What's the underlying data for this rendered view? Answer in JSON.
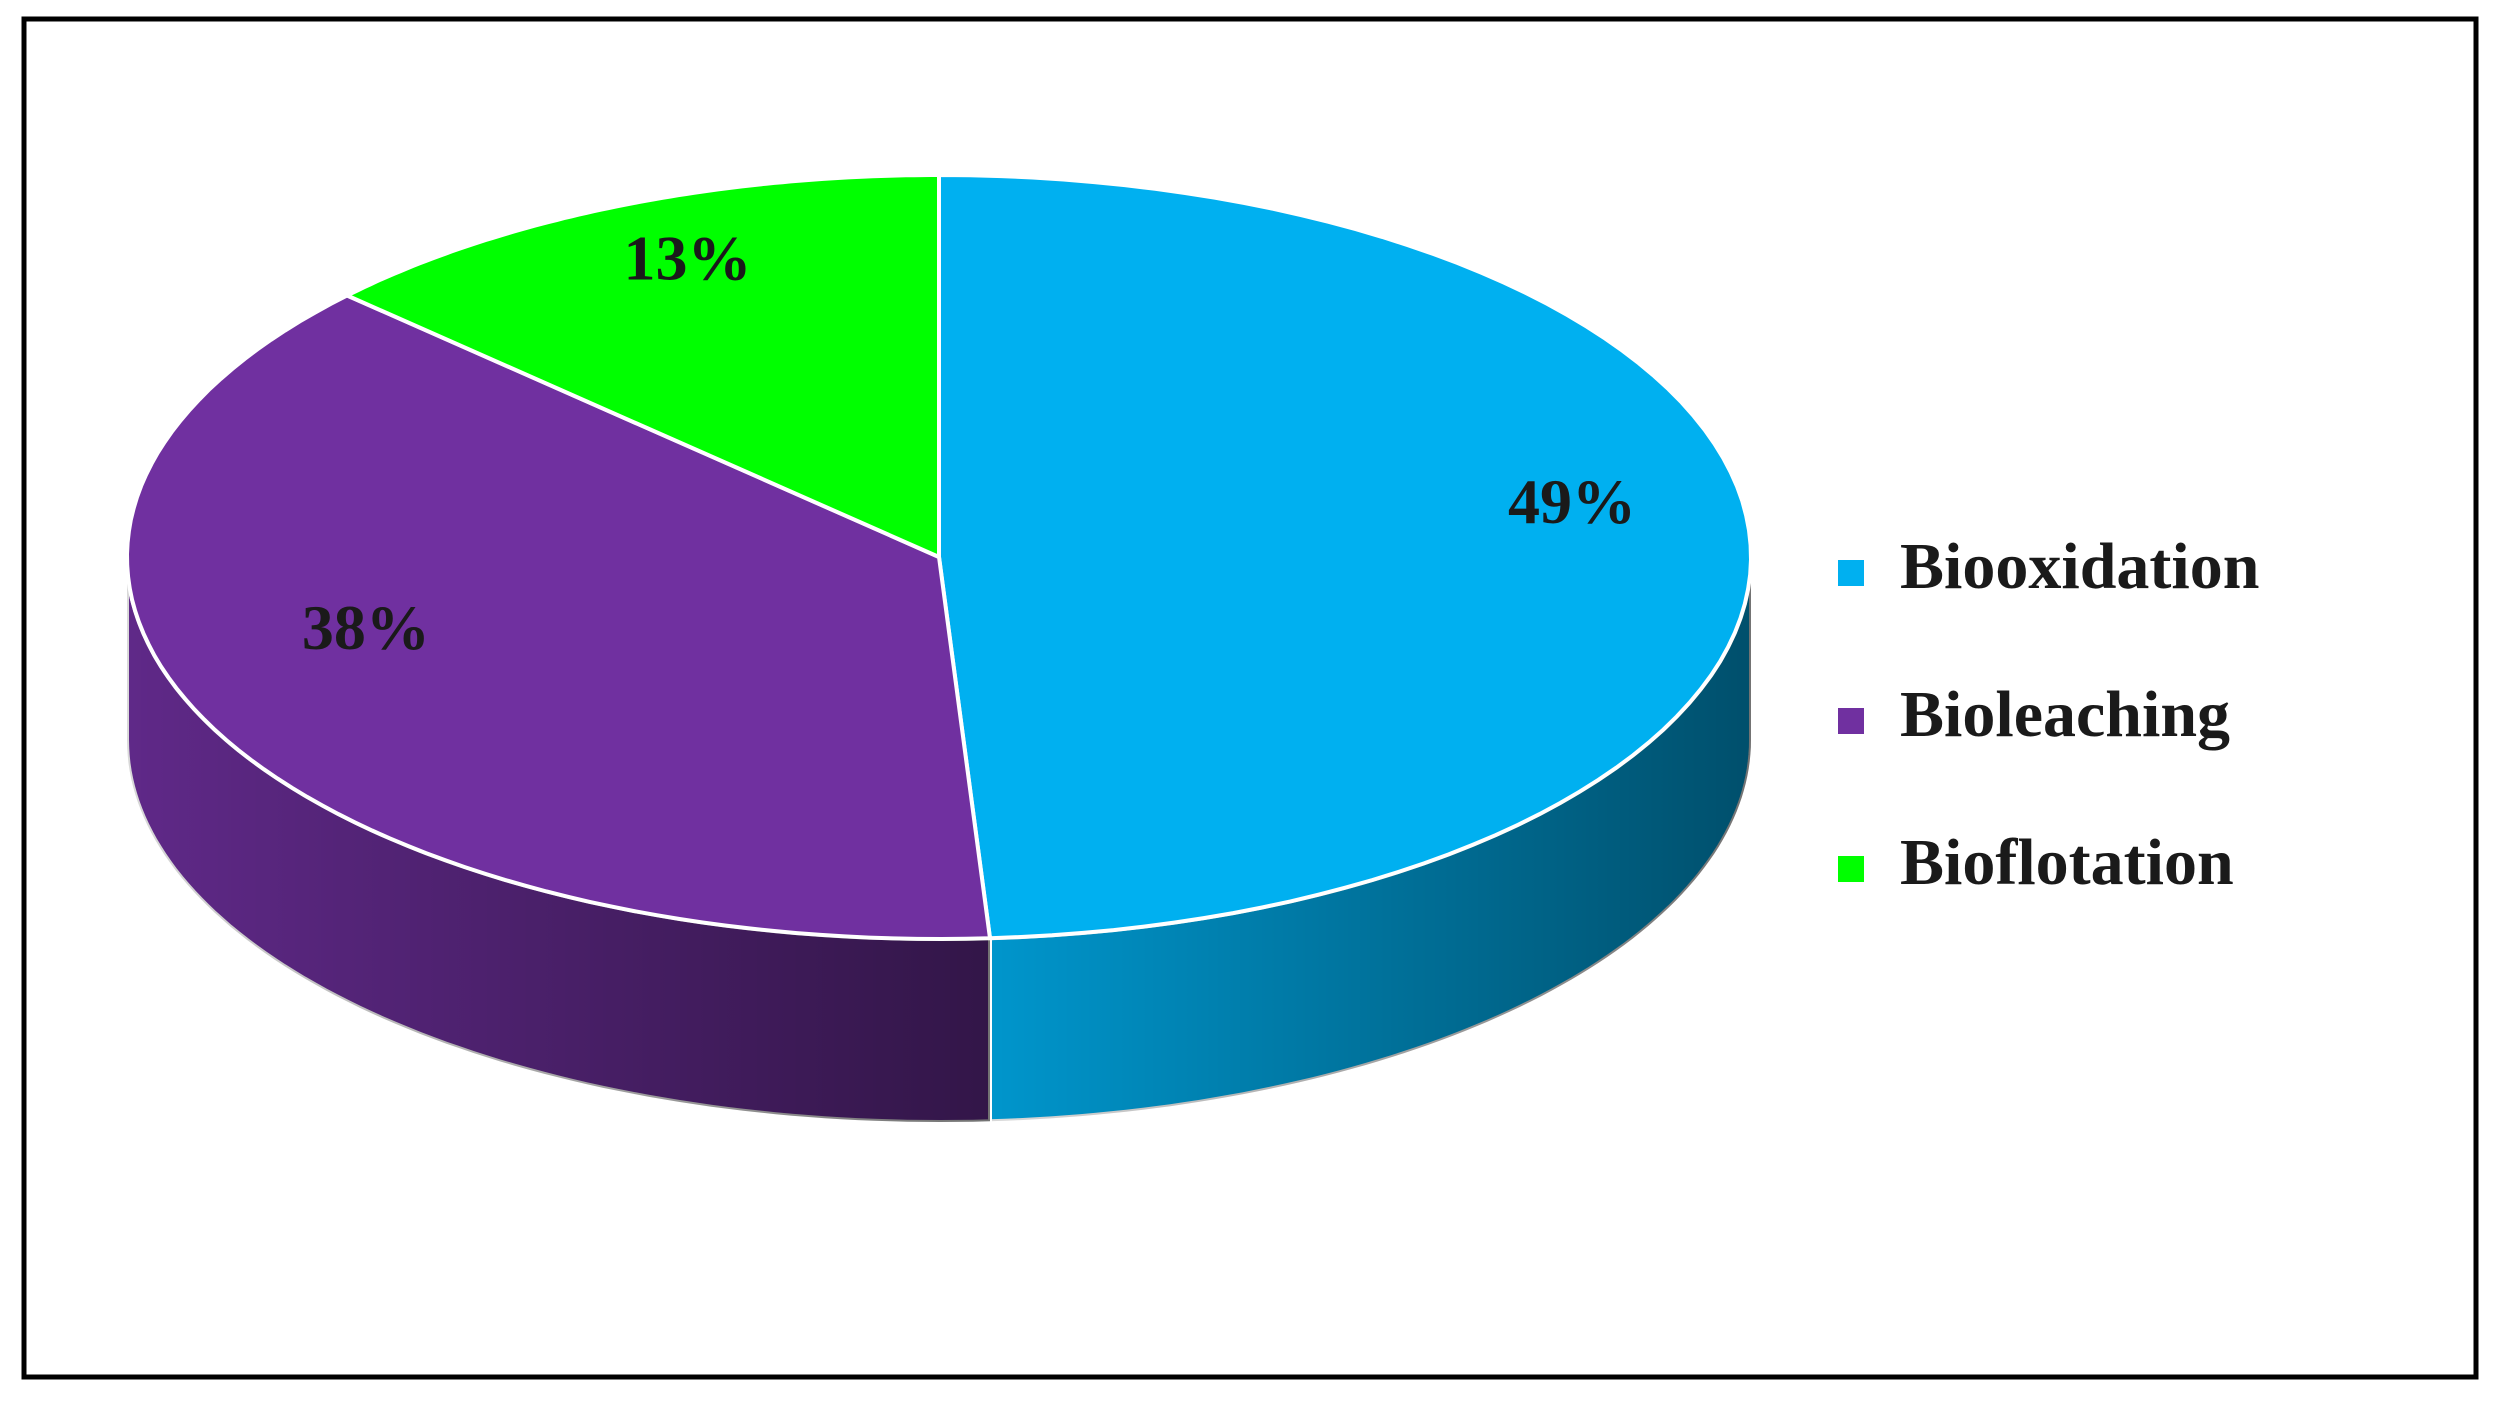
{
  "chart_data": {
    "type": "pie",
    "style": "3d",
    "categories": [
      "Biooxidation",
      "Bioleaching",
      "Bioflotation"
    ],
    "values": [
      49,
      38,
      13
    ],
    "value_labels": [
      "49%",
      "38%",
      "13%"
    ],
    "colors": [
      "#00b0f0",
      "#7030a0",
      "#00ff00"
    ],
    "legend": "right"
  }
}
